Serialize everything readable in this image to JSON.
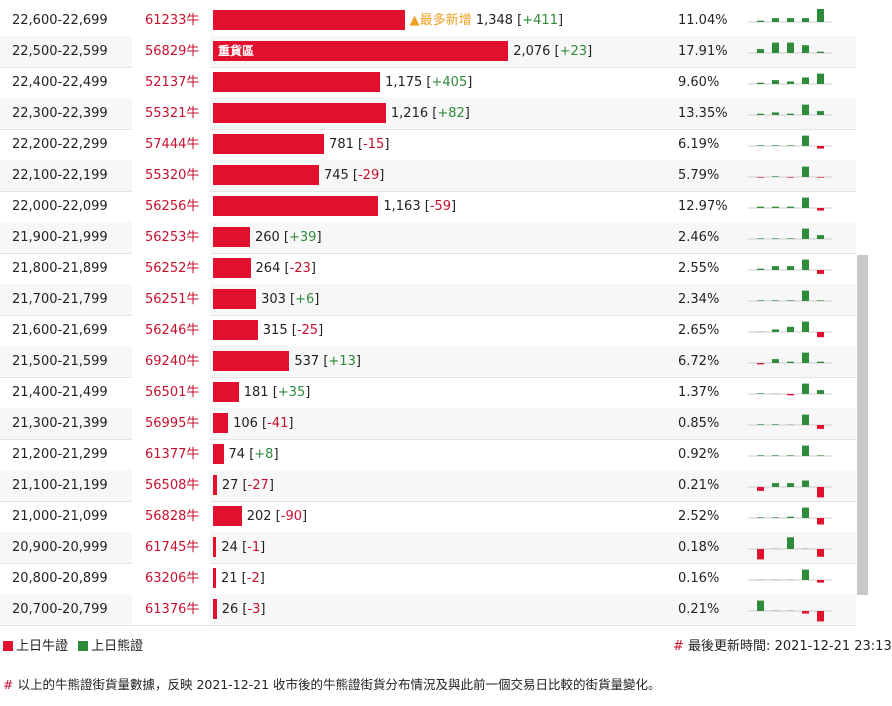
{
  "table": {
    "rows": [
      {
        "range": "22,600-22,699",
        "code": "61233牛",
        "qty": {
          "value": 1348,
          "label": "1,348"
        },
        "change": "+411",
        "pct": "11.04%",
        "tag": "最多新增",
        "history": [
          0.1,
          0.3,
          0.3,
          0.3,
          1
        ]
      },
      {
        "range": "22,500-22,599",
        "code": "56829牛",
        "qty": {
          "value": 2076,
          "label": "2,076"
        },
        "change": "+23",
        "pct": "17.91%",
        "badge": "重貨區",
        "history": [
          0.3,
          0.8,
          0.8,
          0.6,
          0.1
        ]
      },
      {
        "range": "22,400-22,499",
        "code": "52137牛",
        "qty": {
          "value": 1175,
          "label": "1,175"
        },
        "change": "+405",
        "pct": "9.60%",
        "history": [
          0.1,
          0.3,
          0.2,
          0.5,
          0.8
        ]
      },
      {
        "range": "22,300-22,399",
        "code": "55321牛",
        "qty": {
          "value": 1216,
          "label": "1,216"
        },
        "change": "+82",
        "pct": "13.35%",
        "history": [
          0.1,
          0.2,
          0.1,
          0.8,
          0.3
        ]
      },
      {
        "range": "22,200-22,299",
        "code": "57444牛",
        "qty": 781,
        "change": "-15",
        "pct": "6.19%",
        "history": [
          0.05,
          0.05,
          0.05,
          0.8,
          -0.2
        ]
      },
      {
        "range": "22,100-22,199",
        "code": "55320牛",
        "qty": 745,
        "change": "-29",
        "pct": "5.79%",
        "history": [
          -0.05,
          0.05,
          -0.05,
          0.8,
          -0.05
        ]
      },
      {
        "range": "22,000-22,099",
        "code": "56256牛",
        "qty": {
          "value": 1163,
          "label": "1,163"
        },
        "change": "-59",
        "pct": "12.97%",
        "history": [
          0.1,
          0.1,
          0.1,
          0.8,
          -0.2
        ]
      },
      {
        "range": "21,900-21,999",
        "code": "56253牛",
        "qty": 260,
        "change": "+39",
        "pct": "2.46%",
        "history": [
          0.05,
          0.05,
          0.05,
          0.8,
          0.3
        ]
      },
      {
        "range": "21,800-21,899",
        "code": "56252牛",
        "qty": 264,
        "change": "-23",
        "pct": "2.55%",
        "history": [
          0.1,
          0.3,
          0.3,
          0.8,
          -0.3
        ]
      },
      {
        "range": "21,700-21,799",
        "code": "56251牛",
        "qty": 303,
        "change": "+6",
        "pct": "2.34%",
        "history": [
          0.05,
          0.05,
          0.05,
          0.8,
          0.05
        ]
      },
      {
        "range": "21,600-21,699",
        "code": "56246牛",
        "qty": 315,
        "change": "-25",
        "pct": "2.65%",
        "history": [
          0.02,
          0.2,
          0.4,
          0.8,
          -0.4
        ]
      },
      {
        "range": "21,500-21,599",
        "code": "69240牛",
        "qty": 537,
        "change": "+13",
        "pct": "6.72%",
        "history": [
          -0.1,
          0.3,
          0.1,
          0.8,
          0.1
        ]
      },
      {
        "range": "21,400-21,499",
        "code": "56501牛",
        "qty": 181,
        "change": "+35",
        "pct": "1.37%",
        "history": [
          0.05,
          0.02,
          -0.1,
          0.8,
          0.3
        ]
      },
      {
        "range": "21,300-21,399",
        "code": "56995牛",
        "qty": 106,
        "change": "-41",
        "pct": "0.85%",
        "history": [
          0.05,
          0.05,
          0.02,
          0.8,
          -0.3
        ]
      },
      {
        "range": "21,200-21,299",
        "code": "61377牛",
        "qty": 74,
        "change": "+8",
        "pct": "0.92%",
        "history": [
          0.05,
          0.05,
          0.05,
          0.8,
          0.05
        ]
      },
      {
        "range": "21,100-21,199",
        "code": "56508牛",
        "qty": 27,
        "change": "-27",
        "pct": "0.21%",
        "history": [
          -0.3,
          0.3,
          0.3,
          0.5,
          -0.8
        ]
      },
      {
        "range": "21,000-21,099",
        "code": "56828牛",
        "qty": 202,
        "change": "-90",
        "pct": "2.52%",
        "history": [
          0.05,
          0.05,
          0.1,
          0.8,
          -0.5
        ]
      },
      {
        "range": "20,900-20,999",
        "code": "61745牛",
        "qty": 24,
        "change": "-1",
        "pct": "0.18%",
        "history": [
          -0.8,
          0.02,
          0.9,
          0.02,
          -0.6
        ]
      },
      {
        "range": "20,800-20,899",
        "code": "63206牛",
        "qty": 21,
        "change": "-2",
        "pct": "0.16%",
        "history": [
          0.02,
          0.02,
          0.02,
          0.8,
          -0.2
        ]
      },
      {
        "range": "20,700-20,799",
        "code": "61376牛",
        "qty": 26,
        "change": "-3",
        "pct": "0.21%",
        "history": [
          0.8,
          0.02,
          0.02,
          -0.2,
          -0.8
        ]
      }
    ]
  },
  "footer": {
    "legend": [
      "上日牛證",
      "上日熊證"
    ],
    "update_label": "最後更新時間:",
    "update_time": "2021-12-21 23:13",
    "note": "以上的牛熊證街貨量數據，反映 2021-12-21 收市後的牛熊證街貨分布情況及與此前一個交易日比較的街貨量變化。"
  }
}
